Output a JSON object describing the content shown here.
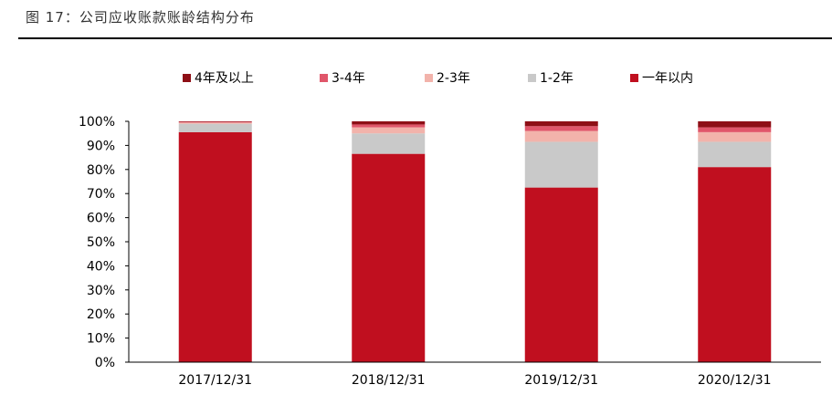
{
  "figure": {
    "title": "图 17：公司应收账款账龄结构分布"
  },
  "chart_data": {
    "type": "bar",
    "stacked": true,
    "percent": true,
    "categories": [
      "2017/12/31",
      "2018/12/31",
      "2019/12/31",
      "2020/12/31"
    ],
    "ylim": [
      0,
      100
    ],
    "yticks": [
      "0%",
      "10%",
      "20%",
      "30%",
      "40%",
      "50%",
      "60%",
      "70%",
      "80%",
      "90%",
      "100%"
    ],
    "legend_position": "top",
    "series": [
      {
        "name": "一年以内",
        "color": "#c00f1f",
        "values": [
          95.5,
          86.5,
          72.5,
          81.0
        ]
      },
      {
        "name": "1-2年",
        "color": "#c9c9c9",
        "values": [
          3.5,
          8.5,
          19.0,
          10.5
        ]
      },
      {
        "name": "2-3年",
        "color": "#f2b3ab",
        "values": [
          0.5,
          2.5,
          4.5,
          4.0
        ]
      },
      {
        "name": "3-4年",
        "color": "#e0566a",
        "values": [
          0.3,
          1.2,
          2.0,
          2.0
        ]
      },
      {
        "name": "4年及以上",
        "color": "#8e0f16",
        "values": [
          0.2,
          1.3,
          2.0,
          2.5
        ]
      }
    ],
    "legend_order": [
      "4年及以上",
      "3-4年",
      "2-3年",
      "1-2年",
      "一年以内"
    ]
  }
}
